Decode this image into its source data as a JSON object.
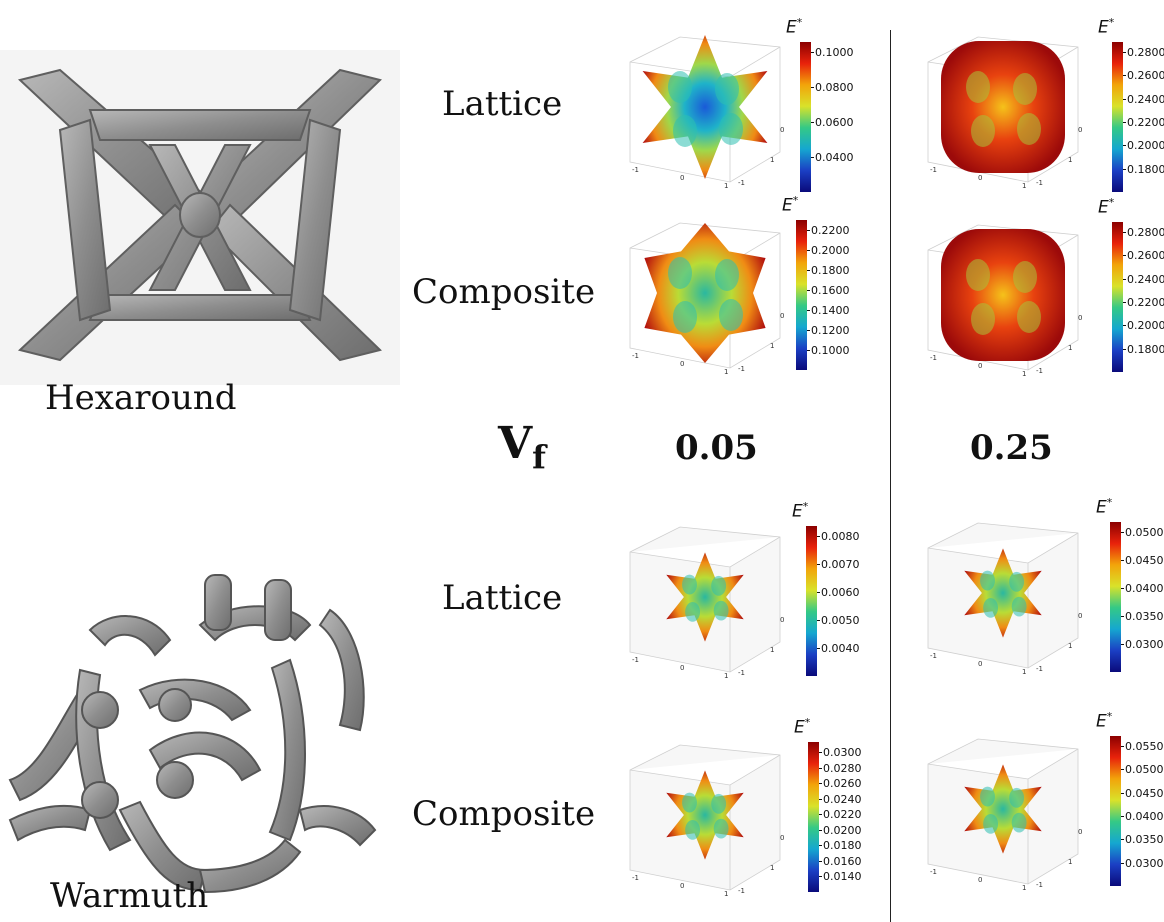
{
  "structures": [
    {
      "label": "Hexaround"
    },
    {
      "label": "Warmuth"
    }
  ],
  "row_labels": {
    "lattice": "Lattice",
    "composite": "Composite"
  },
  "vf_label": {
    "main": "V",
    "sub": "f"
  },
  "columns": [
    {
      "value": "0.05"
    },
    {
      "value": "0.25"
    }
  ],
  "colorbar_title": "E",
  "colorbar_sup": "*",
  "panels": [
    {
      "id": "hex-lattice-005",
      "ticks": [
        "0.1000",
        "0.0800",
        "0.0600",
        "0.0400"
      ],
      "axis": [
        "-1",
        "0",
        "1",
        "-1",
        "1",
        "0"
      ]
    },
    {
      "id": "hex-lattice-025",
      "ticks": [
        "0.2800",
        "0.2600",
        "0.2400",
        "0.2200",
        "0.2000",
        "0.1800"
      ],
      "axis": [
        "-1",
        "0",
        "1",
        "-1",
        "1",
        "0"
      ]
    },
    {
      "id": "hex-composite-005",
      "ticks": [
        "0.2200",
        "0.2000",
        "0.1800",
        "0.1600",
        "0.1400",
        "0.1200",
        "0.1000"
      ],
      "axis": [
        "-1",
        "0",
        "1",
        "-1",
        "1",
        "0"
      ]
    },
    {
      "id": "hex-composite-025",
      "ticks": [
        "0.2800",
        "0.2600",
        "0.2400",
        "0.2200",
        "0.2000",
        "0.1800"
      ],
      "axis": [
        "-1",
        "0",
        "1",
        "-1",
        "1",
        "0"
      ]
    },
    {
      "id": "warm-lattice-005",
      "ticks": [
        "0.0080",
        "0.0070",
        "0.0060",
        "0.0050",
        "0.0040"
      ],
      "axis": [
        "-1",
        "0",
        "1",
        "-1",
        "1",
        "0"
      ]
    },
    {
      "id": "warm-lattice-025",
      "ticks": [
        "0.0500",
        "0.0450",
        "0.0400",
        "0.0350",
        "0.0300"
      ],
      "axis": [
        "-1",
        "0",
        "1",
        "-1",
        "1",
        "0"
      ]
    },
    {
      "id": "warm-composite-005",
      "ticks": [
        "0.0300",
        "0.0280",
        "0.0260",
        "0.0240",
        "0.0220",
        "0.0200",
        "0.0180",
        "0.0160",
        "0.0140"
      ],
      "axis": [
        "-1",
        "0",
        "1",
        "-1",
        "1",
        "0"
      ]
    },
    {
      "id": "warm-composite-025",
      "ticks": [
        "0.0550",
        "0.0500",
        "0.0450",
        "0.0400",
        "0.0350",
        "0.0300"
      ],
      "axis": [
        "-1",
        "0",
        "1",
        "-1",
        "1",
        "0"
      ]
    }
  ]
}
